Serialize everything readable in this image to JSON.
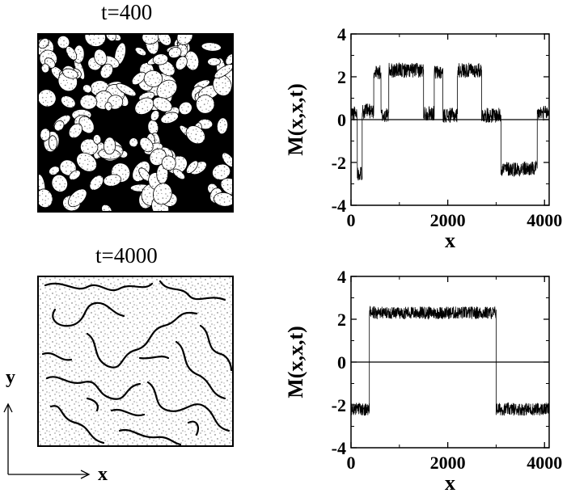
{
  "snapshots": [
    {
      "title": "t=400",
      "style": "droplets"
    },
    {
      "title": "t=4000",
      "style": "interfaces"
    }
  ],
  "axes_indicator": {
    "y_label": "y",
    "x_label": "x"
  },
  "chart_data": [
    {
      "type": "line",
      "xlabel": "x",
      "ylabel": "M(x,x,t)",
      "xlim": [
        0,
        4096
      ],
      "ylim": [
        -4,
        4
      ],
      "xticks": [
        0,
        2000,
        4000
      ],
      "yticks": [
        -4,
        -2,
        0,
        2,
        4
      ],
      "xtick_labels": [
        "0",
        "2000",
        "4000"
      ],
      "ytick_labels": [
        "-4",
        "-2",
        "0",
        "2",
        "4"
      ],
      "zero_line": true,
      "noise_amplitude": 0.35,
      "segments": [
        {
          "x0": 0,
          "x1": 130,
          "level": 0.3
        },
        {
          "x0": 130,
          "x1": 230,
          "level": -2.5
        },
        {
          "x0": 230,
          "x1": 470,
          "level": 0.4
        },
        {
          "x0": 470,
          "x1": 620,
          "level": 2.2
        },
        {
          "x0": 620,
          "x1": 780,
          "level": 0.2
        },
        {
          "x0": 780,
          "x1": 1500,
          "level": 2.3
        },
        {
          "x0": 1500,
          "x1": 1720,
          "level": 0.3
        },
        {
          "x0": 1720,
          "x1": 1900,
          "level": 2.2
        },
        {
          "x0": 1900,
          "x1": 2200,
          "level": 0.2
        },
        {
          "x0": 2200,
          "x1": 2700,
          "level": 2.3
        },
        {
          "x0": 2700,
          "x1": 3100,
          "level": 0.2
        },
        {
          "x0": 3100,
          "x1": 3850,
          "level": -2.3
        },
        {
          "x0": 3850,
          "x1": 4096,
          "level": 0.3
        }
      ]
    },
    {
      "type": "line",
      "xlabel": "x",
      "ylabel": "M(x,x,t)",
      "xlim": [
        0,
        4096
      ],
      "ylim": [
        -4,
        4
      ],
      "xticks": [
        0,
        2000,
        4000
      ],
      "yticks": [
        -4,
        -2,
        0,
        2,
        4
      ],
      "xtick_labels": [
        "0",
        "2000",
        "4000"
      ],
      "ytick_labels": [
        "-4",
        "-2",
        "0",
        "2",
        "4"
      ],
      "zero_line": true,
      "noise_amplitude": 0.3,
      "segments": [
        {
          "x0": 0,
          "x1": 380,
          "level": -2.2
        },
        {
          "x0": 380,
          "x1": 3000,
          "level": 2.3
        },
        {
          "x0": 3000,
          "x1": 4096,
          "level": -2.2
        }
      ]
    }
  ]
}
